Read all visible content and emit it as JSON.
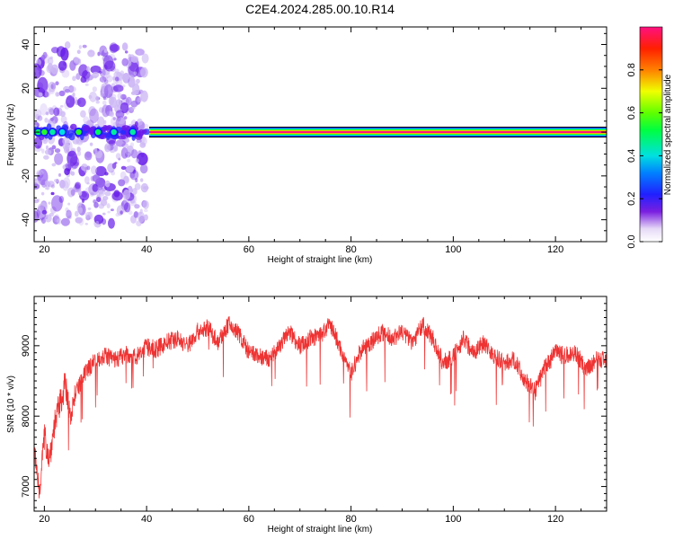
{
  "title": "C2E4.2024.285.00.10.R14",
  "chart_data": [
    {
      "type": "heatmap",
      "xlabel": "Height of straight line (km)",
      "ylabel": "Frequency (Hz)",
      "xlim": [
        18,
        130
      ],
      "ylim": [
        -50,
        48
      ],
      "xticks": [
        "20",
        "40",
        "60",
        "80",
        "100",
        "120"
      ],
      "yticks": [
        "40",
        "20",
        "0",
        "-20",
        "-40"
      ],
      "colorbar": {
        "label": "Normalized spectral amplitude",
        "ticks": [
          "0.0",
          "0.2",
          "0.4",
          "0.6",
          "0.8"
        ],
        "range": [
          0,
          1
        ]
      },
      "signal_band": {
        "x_start": 40.5,
        "x_end": 130,
        "frequency": 0,
        "amplitude": 1.0
      },
      "scatter_region": {
        "x_start": 18,
        "x_end": 40,
        "freq_min": -42,
        "freq_max": 40
      },
      "peaks": [
        {
          "x": 18.8,
          "amplitude": 0.5
        },
        {
          "x": 20.0,
          "amplitude": 0.55
        },
        {
          "x": 21.6,
          "amplitude": 0.45
        },
        {
          "x": 23.5,
          "amplitude": 0.4
        },
        {
          "x": 26.7,
          "amplitude": 0.55
        },
        {
          "x": 30.5,
          "amplitude": 0.5
        },
        {
          "x": 33.6,
          "amplitude": 0.45
        },
        {
          "x": 37.3,
          "amplitude": 0.45
        }
      ]
    },
    {
      "type": "line",
      "xlabel": "Height of straight line (km)",
      "ylabel": "SNR (10 * v/v)",
      "xlim": [
        18,
        130
      ],
      "ylim": [
        6650,
        9700
      ],
      "xticks": [
        "20",
        "40",
        "60",
        "80",
        "100",
        "120"
      ],
      "yticks": [
        "7000",
        "8000",
        "9000"
      ],
      "series": [
        {
          "color": "#ee3333",
          "x": [
            18,
            19,
            20,
            21,
            22,
            23,
            24,
            25,
            26,
            28,
            30,
            32,
            34,
            36,
            38,
            40,
            42,
            44,
            46,
            48,
            50,
            52,
            54,
            56,
            58,
            60,
            62,
            64,
            66,
            68,
            70,
            72,
            74,
            76,
            78,
            80,
            82,
            84,
            86,
            88,
            90,
            92,
            94,
            96,
            98,
            100,
            102,
            104,
            106,
            108,
            110,
            112,
            114,
            116,
            118,
            120,
            122,
            124,
            126,
            128,
            130
          ],
          "y": [
            7500,
            6950,
            7700,
            7400,
            7900,
            8150,
            8450,
            8050,
            8300,
            8600,
            8820,
            8850,
            8800,
            8880,
            8850,
            8980,
            8950,
            9050,
            9100,
            9000,
            9200,
            9250,
            9050,
            9300,
            9180,
            8900,
            8850,
            8800,
            9000,
            9200,
            9000,
            9100,
            9150,
            9300,
            8950,
            8600,
            8950,
            9050,
            9200,
            9100,
            9200,
            9050,
            9300,
            9100,
            8750,
            8850,
            9100,
            8900,
            9050,
            8850,
            8750,
            8800,
            8500,
            8350,
            8700,
            8900,
            8850,
            8900,
            8650,
            8800,
            8800
          ]
        }
      ]
    }
  ]
}
